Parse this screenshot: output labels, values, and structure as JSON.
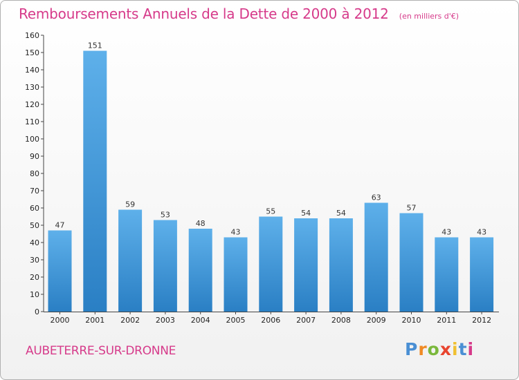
{
  "chart_data": {
    "type": "bar",
    "title": "Remboursements Annuels de la Dette de 2000 à 2012",
    "subtitle": "(en milliers d'€)",
    "categories": [
      "2000",
      "2001",
      "2002",
      "2003",
      "2004",
      "2005",
      "2006",
      "2007",
      "2008",
      "2009",
      "2010",
      "2011",
      "2012"
    ],
    "values": [
      47,
      151,
      59,
      53,
      48,
      43,
      55,
      54,
      54,
      63,
      57,
      43,
      43
    ],
    "ylim": [
      0,
      160
    ],
    "yticks": [
      0,
      10,
      20,
      30,
      40,
      50,
      60,
      70,
      80,
      90,
      100,
      110,
      120,
      130,
      140,
      150,
      160
    ],
    "grid": false,
    "xlabel": "",
    "ylabel": ""
  },
  "commune": "AUBETERRE-SUR-DRONNE",
  "logo": {
    "letters": [
      "P",
      "r",
      "o",
      "x",
      "i",
      "t",
      "i"
    ],
    "colors": [
      "#4a8fd4",
      "#f08a24",
      "#7ab83c",
      "#e8442e",
      "#f0c030",
      "#4a8fd4",
      "#d63a8a"
    ]
  },
  "colors": {
    "title": "#d63a8a",
    "bar_top": "#5eb0ea",
    "bar_bottom": "#2a7fc4",
    "axis": "#444444"
  }
}
